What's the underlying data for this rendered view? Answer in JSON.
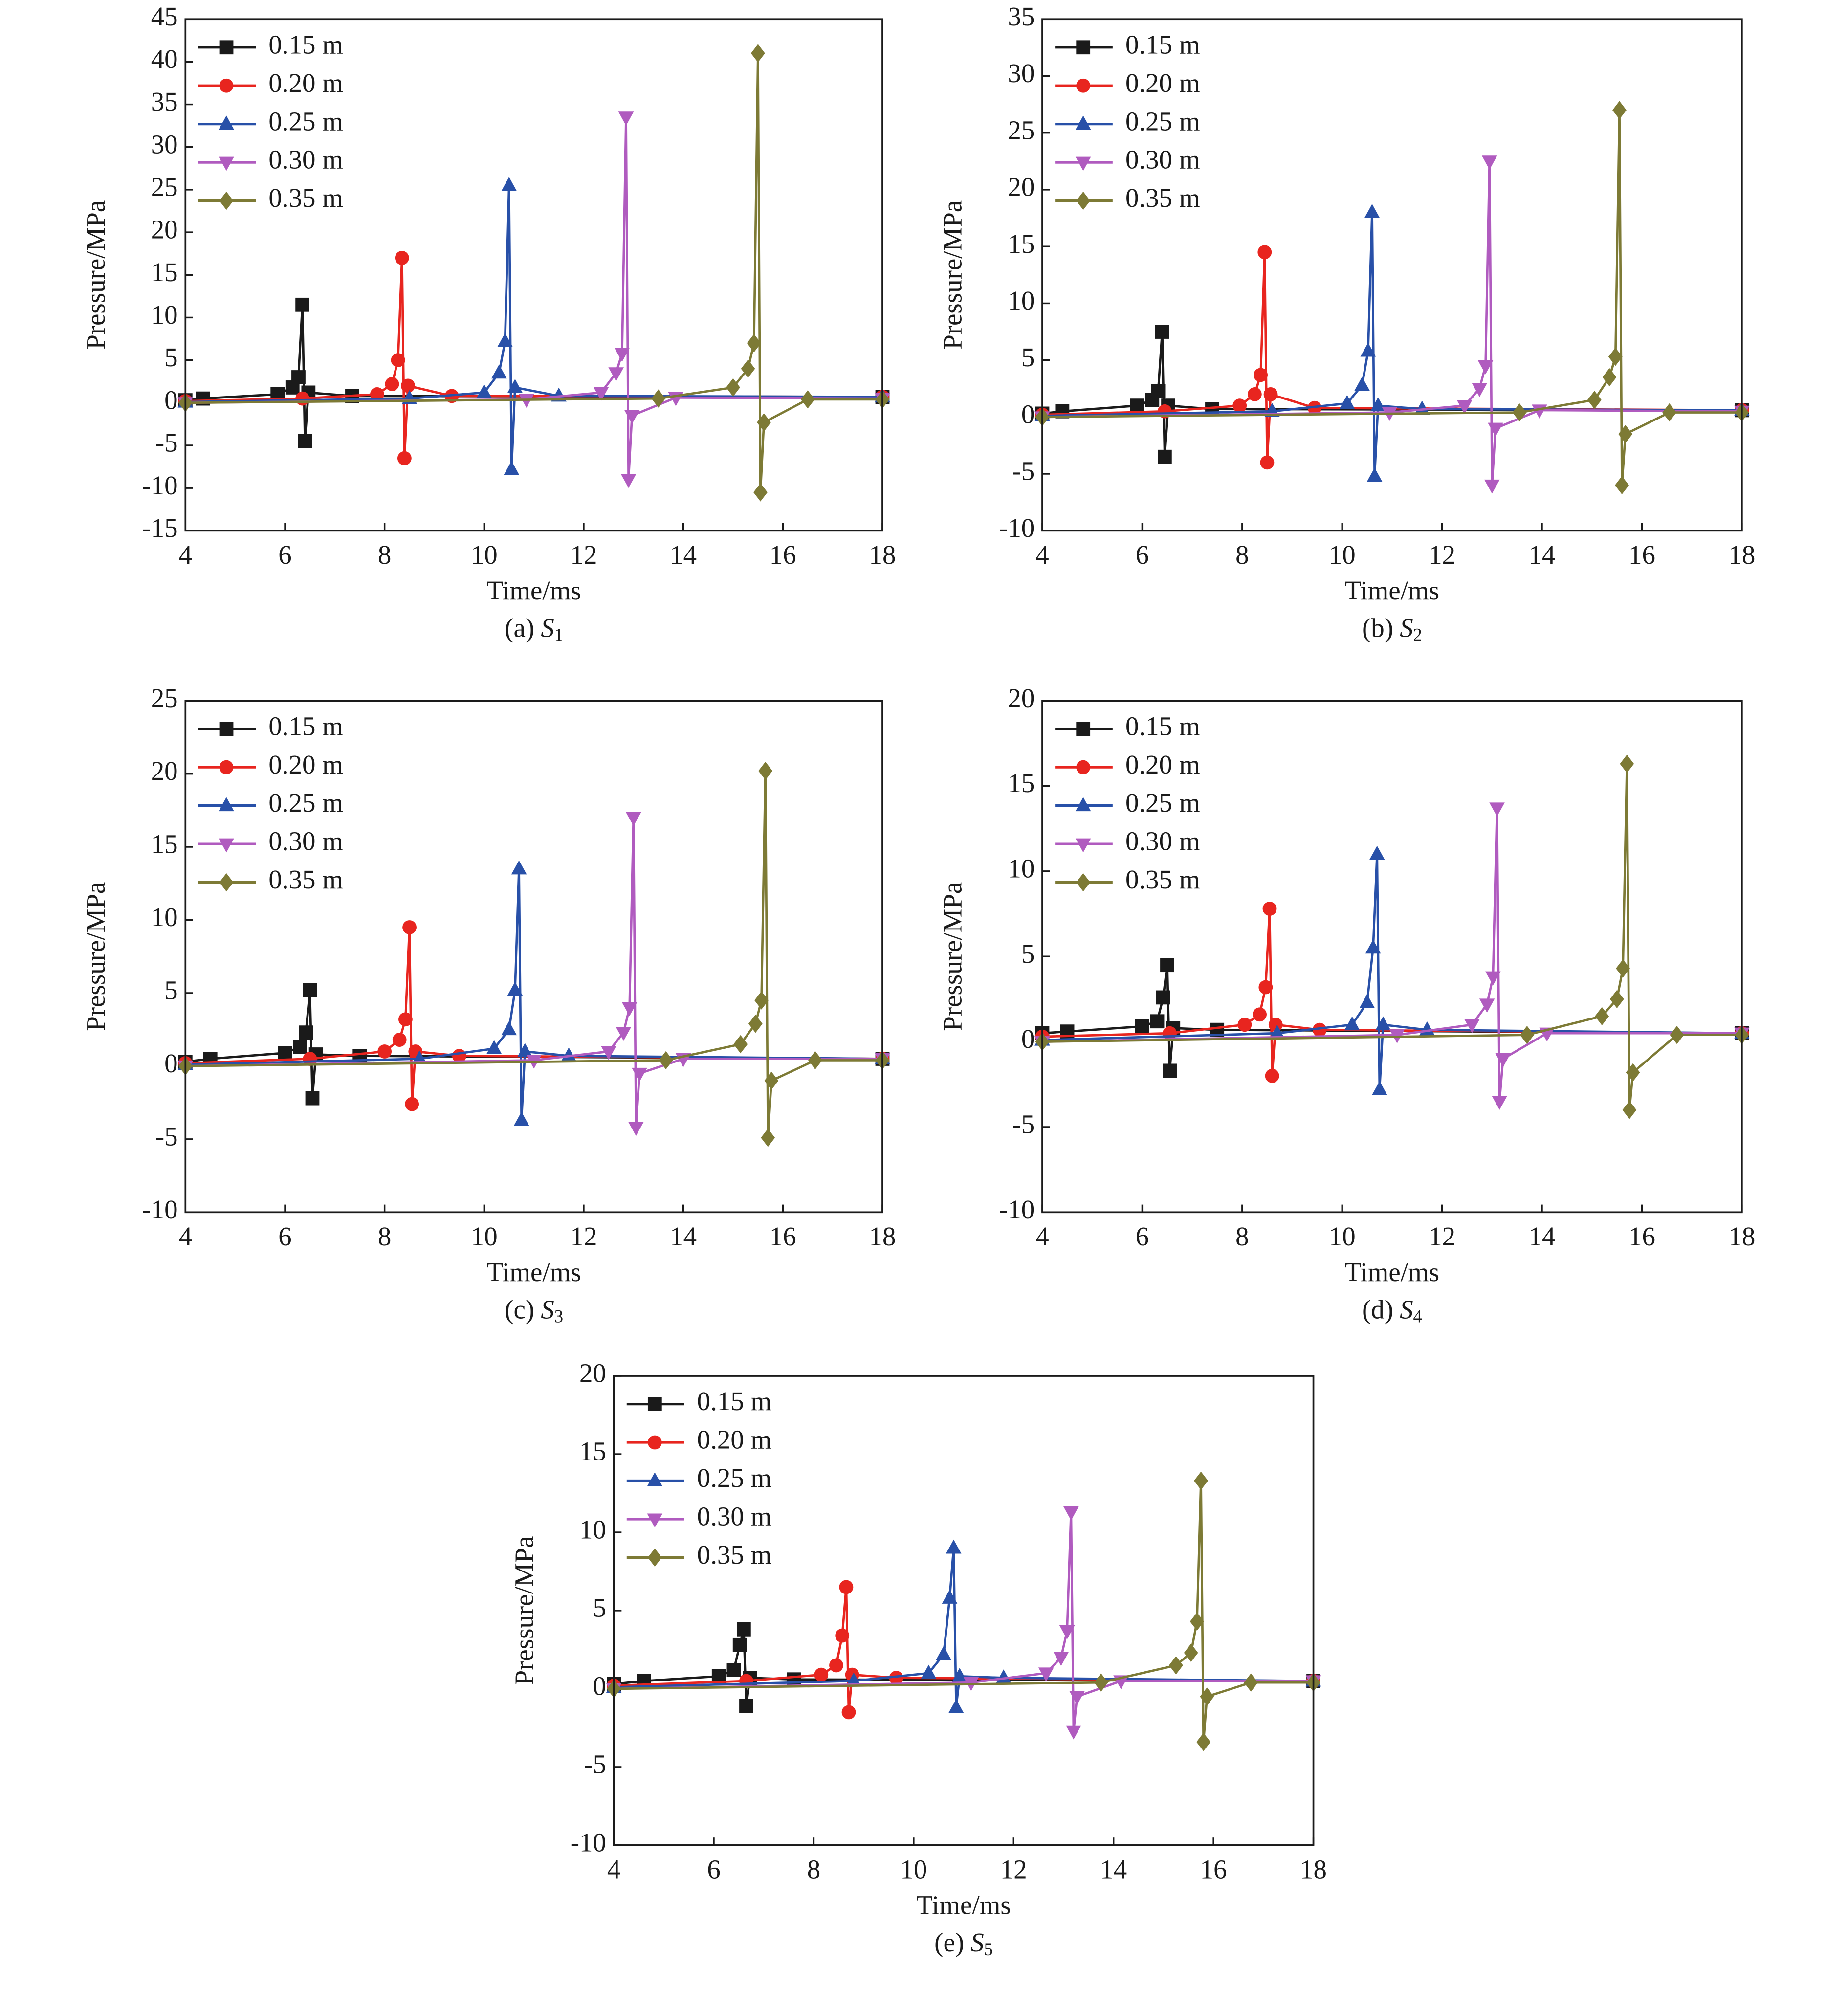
{
  "chart_data": [
    {
      "type": "line",
      "caption_label": "(a)",
      "caption_symbol": "S",
      "caption_subscript": "1",
      "x_label": "Time/ms",
      "y_label": "Pressure/MPa",
      "xlim": [
        4,
        18
      ],
      "xticks": [
        4,
        6,
        8,
        10,
        12,
        14,
        16,
        18
      ],
      "ylim": [
        -15,
        45
      ],
      "yticks": [
        -15,
        -10,
        -5,
        0,
        5,
        10,
        15,
        20,
        25,
        30,
        35,
        40,
        45
      ],
      "series": [
        {
          "name": "0.15 m",
          "color": "#1a1a1a",
          "marker": "square",
          "x": [
            4,
            4.35,
            5.85,
            6.15,
            6.27,
            6.35,
            6.4,
            6.47,
            7.35,
            18
          ],
          "values": [
            0.3,
            0.5,
            1.0,
            1.8,
            3,
            11.5,
            -4.5,
            1.2,
            0.8,
            0.7
          ]
        },
        {
          "name": "0.20 m",
          "color": "#e8251f",
          "marker": "circle",
          "x": [
            4,
            6.35,
            7.85,
            8.15,
            8.27,
            8.35,
            8.4,
            8.47,
            9.35,
            18
          ],
          "values": [
            0.2,
            0.5,
            1.0,
            2.2,
            5,
            17,
            -6.5,
            2,
            0.8,
            0.7
          ]
        },
        {
          "name": "0.25 m",
          "color": "#2850a8",
          "marker": "triangle-up",
          "x": [
            4,
            8.5,
            10,
            10.3,
            10.42,
            10.5,
            10.55,
            10.62,
            11.5,
            18
          ],
          "values": [
            0.1,
            0.5,
            1.2,
            3.5,
            7.2,
            25.5,
            -7.8,
            1.8,
            0.8,
            0.7
          ]
        },
        {
          "name": "0.30 m",
          "color": "#b05bbf",
          "marker": "triangle-down",
          "x": [
            4,
            10.85,
            12.35,
            12.65,
            12.77,
            12.85,
            12.9,
            12.97,
            13.85,
            18
          ],
          "values": [
            0,
            0.4,
            1.2,
            3.5,
            5.8,
            33.5,
            -9,
            -1.5,
            0.6,
            0.5
          ]
        },
        {
          "name": "0.35 m",
          "color": "#7d7a35",
          "marker": "diamond",
          "x": [
            4,
            13.5,
            15,
            15.3,
            15.42,
            15.5,
            15.55,
            15.62,
            16.5,
            18
          ],
          "values": [
            0,
            0.5,
            1.8,
            4,
            7,
            41,
            -10.5,
            -2.3,
            0.4,
            0.4
          ]
        }
      ]
    },
    {
      "type": "line",
      "caption_label": "(b)",
      "caption_symbol": "S",
      "caption_subscript": "2",
      "x_label": "Time/ms",
      "y_label": "Pressure/MPa",
      "xlim": [
        4,
        18
      ],
      "xticks": [
        4,
        6,
        8,
        10,
        12,
        14,
        16,
        18
      ],
      "ylim": [
        -10,
        35
      ],
      "yticks": [
        -10,
        -5,
        0,
        5,
        10,
        15,
        20,
        25,
        30,
        35
      ],
      "series": [
        {
          "name": "0.15 m",
          "color": "#1a1a1a",
          "marker": "square",
          "x": [
            4,
            4.4,
            5.9,
            6.2,
            6.32,
            6.4,
            6.45,
            6.52,
            7.4,
            18
          ],
          "values": [
            0.3,
            0.5,
            1,
            1.5,
            2.3,
            7.5,
            -3.5,
            1,
            0.7,
            0.6
          ]
        },
        {
          "name": "0.20 m",
          "color": "#e8251f",
          "marker": "circle",
          "x": [
            4,
            6.45,
            7.95,
            8.25,
            8.37,
            8.45,
            8.5,
            8.57,
            9.45,
            18
          ],
          "values": [
            0.2,
            0.5,
            1,
            2,
            3.7,
            14.5,
            -4,
            2,
            0.8,
            0.6
          ]
        },
        {
          "name": "0.25 m",
          "color": "#2850a8",
          "marker": "triangle-up",
          "x": [
            4,
            8.6,
            10.1,
            10.4,
            10.52,
            10.6,
            10.65,
            10.72,
            11.6,
            18
          ],
          "values": [
            0.1,
            0.5,
            1.2,
            2.8,
            5.8,
            18,
            -5.2,
            1,
            0.7,
            0.6
          ]
        },
        {
          "name": "0.30 m",
          "color": "#b05bbf",
          "marker": "triangle-down",
          "x": [
            4,
            10.95,
            12.45,
            12.75,
            12.87,
            12.95,
            13,
            13.07,
            13.95,
            18
          ],
          "values": [
            0,
            0.4,
            1,
            2.5,
            4.5,
            22.5,
            -6,
            -1,
            0.6,
            0.5
          ]
        },
        {
          "name": "0.35 m",
          "color": "#7d7a35",
          "marker": "diamond",
          "x": [
            4,
            13.55,
            15.05,
            15.35,
            15.47,
            15.55,
            15.6,
            15.67,
            16.55,
            18
          ],
          "values": [
            0,
            0.4,
            1.5,
            3.5,
            5.3,
            27,
            -6,
            -1.5,
            0.4,
            0.4
          ]
        }
      ]
    },
    {
      "type": "line",
      "caption_label": "(c)",
      "caption_symbol": "S",
      "caption_subscript": "3",
      "x_label": "Time/ms",
      "y_label": "Pressure/MPa",
      "xlim": [
        4,
        18
      ],
      "xticks": [
        4,
        6,
        8,
        10,
        12,
        14,
        16,
        18
      ],
      "ylim": [
        -10,
        25
      ],
      "yticks": [
        -10,
        -5,
        0,
        5,
        10,
        15,
        20,
        25
      ],
      "series": [
        {
          "name": "0.15 m",
          "color": "#1a1a1a",
          "marker": "square",
          "x": [
            4,
            4.5,
            6,
            6.3,
            6.42,
            6.5,
            6.55,
            6.62,
            7.5,
            18
          ],
          "values": [
            0.3,
            0.5,
            0.9,
            1.3,
            2.3,
            5.2,
            -2.2,
            0.8,
            0.7,
            0.5
          ]
        },
        {
          "name": "0.20 m",
          "color": "#e8251f",
          "marker": "circle",
          "x": [
            4,
            6.5,
            8,
            8.3,
            8.42,
            8.5,
            8.55,
            8.62,
            9.5,
            18
          ],
          "values": [
            0.2,
            0.5,
            1,
            1.8,
            3.2,
            9.5,
            -2.6,
            1,
            0.7,
            0.5
          ]
        },
        {
          "name": "0.25 m",
          "color": "#2850a8",
          "marker": "triangle-up",
          "x": [
            4,
            8.7,
            10.2,
            10.5,
            10.62,
            10.7,
            10.75,
            10.82,
            11.7,
            18
          ],
          "values": [
            0.1,
            0.5,
            1.2,
            2.5,
            5.2,
            13.5,
            -3.7,
            1,
            0.7,
            0.5
          ]
        },
        {
          "name": "0.30 m",
          "color": "#b05bbf",
          "marker": "triangle-down",
          "x": [
            4,
            11,
            12.5,
            12.8,
            12.92,
            13,
            13.05,
            13.12,
            14,
            18
          ],
          "values": [
            0,
            0.4,
            1,
            2.3,
            4,
            17,
            -4.2,
            -0.5,
            0.5,
            0.5
          ]
        },
        {
          "name": "0.35 m",
          "color": "#7d7a35",
          "marker": "diamond",
          "x": [
            4,
            13.65,
            15.15,
            15.45,
            15.57,
            15.65,
            15.7,
            15.77,
            16.65,
            18
          ],
          "values": [
            0,
            0.4,
            1.5,
            2.9,
            4.5,
            20.2,
            -4.9,
            -1,
            0.4,
            0.4
          ]
        }
      ]
    },
    {
      "type": "line",
      "caption_label": "(d)",
      "caption_symbol": "S",
      "caption_subscript": "4",
      "x_label": "Time/ms",
      "y_label": "Pressure/MPa",
      "xlim": [
        4,
        18
      ],
      "xticks": [
        4,
        6,
        8,
        10,
        12,
        14,
        16,
        18
      ],
      "ylim": [
        -10,
        20
      ],
      "yticks": [
        -10,
        -5,
        0,
        5,
        10,
        15,
        20
      ],
      "series": [
        {
          "name": "0.15 m",
          "color": "#1a1a1a",
          "marker": "square",
          "x": [
            4,
            4.5,
            6,
            6.3,
            6.42,
            6.5,
            6.55,
            6.62,
            7.5,
            18
          ],
          "values": [
            0.5,
            0.6,
            0.9,
            1.2,
            2.6,
            4.5,
            -1.7,
            0.8,
            0.7,
            0.5
          ]
        },
        {
          "name": "0.20 m",
          "color": "#e8251f",
          "marker": "circle",
          "x": [
            4,
            6.55,
            8.05,
            8.35,
            8.47,
            8.55,
            8.6,
            8.67,
            9.55,
            18
          ],
          "values": [
            0.3,
            0.5,
            1,
            1.6,
            3.2,
            7.8,
            -2,
            1,
            0.7,
            0.5
          ]
        },
        {
          "name": "0.25 m",
          "color": "#2850a8",
          "marker": "triangle-up",
          "x": [
            4,
            8.7,
            10.2,
            10.5,
            10.62,
            10.7,
            10.75,
            10.82,
            11.7,
            18
          ],
          "values": [
            0.1,
            0.5,
            1,
            2.3,
            5.5,
            11,
            -2.8,
            1,
            0.7,
            0.5
          ]
        },
        {
          "name": "0.30 m",
          "color": "#b05bbf",
          "marker": "triangle-down",
          "x": [
            4,
            11.1,
            12.6,
            12.9,
            13.02,
            13.1,
            13.15,
            13.22,
            14.1,
            18
          ],
          "values": [
            0,
            0.4,
            1,
            2.2,
            3.8,
            13.7,
            -3.5,
            -1,
            0.5,
            0.5
          ]
        },
        {
          "name": "0.35 m",
          "color": "#7d7a35",
          "marker": "diamond",
          "x": [
            4,
            13.7,
            15.2,
            15.5,
            15.62,
            15.7,
            15.75,
            15.82,
            16.7,
            18
          ],
          "values": [
            0,
            0.4,
            1.5,
            2.5,
            4.3,
            16.3,
            -4,
            -1.8,
            0.4,
            0.4
          ]
        }
      ]
    },
    {
      "type": "line",
      "caption_label": "(e)",
      "caption_symbol": "S",
      "caption_subscript": "5",
      "x_label": "Time/ms",
      "y_label": "Pressure/MPa",
      "xlim": [
        4,
        18
      ],
      "xticks": [
        4,
        6,
        8,
        10,
        12,
        14,
        16,
        18
      ],
      "ylim": [
        -10,
        20
      ],
      "yticks": [
        -10,
        -5,
        0,
        5,
        10,
        15,
        20
      ],
      "series": [
        {
          "name": "0.15 m",
          "color": "#1a1a1a",
          "marker": "square",
          "x": [
            4,
            4.6,
            6.1,
            6.4,
            6.52,
            6.6,
            6.65,
            6.72,
            7.6,
            18
          ],
          "values": [
            0.3,
            0.5,
            0.8,
            1.2,
            2.8,
            3.8,
            -1.1,
            0.7,
            0.6,
            0.5
          ]
        },
        {
          "name": "0.20 m",
          "color": "#e8251f",
          "marker": "circle",
          "x": [
            4,
            6.65,
            8.15,
            8.45,
            8.57,
            8.65,
            8.7,
            8.77,
            9.65,
            18
          ],
          "values": [
            0.2,
            0.5,
            0.9,
            1.5,
            3.4,
            6.5,
            -1.5,
            0.9,
            0.7,
            0.5
          ]
        },
        {
          "name": "0.25 m",
          "color": "#2850a8",
          "marker": "triangle-up",
          "x": [
            4,
            8.8,
            10.3,
            10.6,
            10.72,
            10.8,
            10.85,
            10.92,
            11.8,
            18
          ],
          "values": [
            0.1,
            0.5,
            1,
            2.2,
            5.8,
            9,
            -1.2,
            0.8,
            0.7,
            0.5
          ]
        },
        {
          "name": "0.30 m",
          "color": "#b05bbf",
          "marker": "triangle-down",
          "x": [
            4,
            11.15,
            12.65,
            12.95,
            13.07,
            13.15,
            13.2,
            13.27,
            14.15,
            18
          ],
          "values": [
            0,
            0.4,
            1,
            2,
            3.7,
            11.3,
            -2.7,
            -0.5,
            0.5,
            0.5
          ]
        },
        {
          "name": "0.35 m",
          "color": "#7d7a35",
          "marker": "diamond",
          "x": [
            4,
            13.75,
            15.25,
            15.55,
            15.67,
            15.75,
            15.8,
            15.87,
            16.75,
            18
          ],
          "values": [
            0,
            0.4,
            1.5,
            2.3,
            4.3,
            13.3,
            -3.4,
            -0.5,
            0.4,
            0.4
          ]
        }
      ]
    }
  ]
}
